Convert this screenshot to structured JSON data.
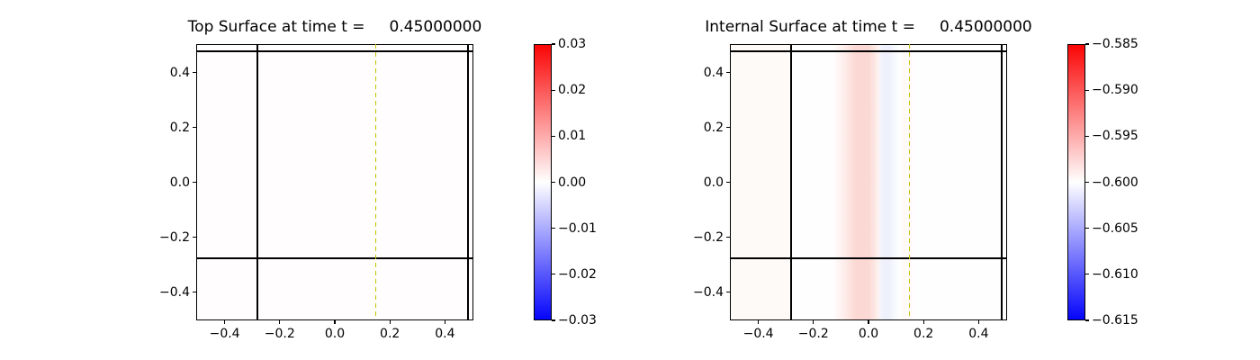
{
  "figure": {
    "background": "#ffffff",
    "text_color": "#000000"
  },
  "chart_data": [
    {
      "type": "heatmap",
      "title": "Top Surface at time t =     0.45000000",
      "xlim": [
        -0.5,
        0.5
      ],
      "ylim": [
        -0.5,
        0.5
      ],
      "grid": false,
      "xticks": [
        {
          "v": -0.4,
          "label": "−0.4"
        },
        {
          "v": -0.2,
          "label": "−0.2"
        },
        {
          "v": 0.0,
          "label": "0.0"
        },
        {
          "v": 0.2,
          "label": "0.2"
        },
        {
          "v": 0.4,
          "label": "0.4"
        }
      ],
      "yticks": [
        {
          "v": 0.4,
          "label": "0.4"
        },
        {
          "v": 0.2,
          "label": "0.2"
        },
        {
          "v": 0.0,
          "label": "0.0"
        },
        {
          "v": -0.2,
          "label": "−0.2"
        },
        {
          "v": -0.4,
          "label": "−0.4"
        }
      ],
      "field": {
        "color": "#fffdfd",
        "description": "near-uniform surface elevation ≈ 0.000 (white on blue-white-red colormap)"
      },
      "overlays": {
        "hlines": [
          0.478,
          -0.277
        ],
        "vlines": [
          -0.28,
          0.485
        ],
        "dashed_vline": {
          "x": 0.149,
          "color": "#c3c300"
        },
        "line_color": "#000000"
      },
      "colorbar": {
        "cmap": "bwr",
        "vmin": -0.03,
        "vmax": 0.03,
        "gradient": [
          {
            "color": "#fb0505",
            "pos": "0%"
          },
          {
            "color": "#ffffff",
            "pos": "50%"
          },
          {
            "color": "#0505fb",
            "pos": "100%"
          }
        ],
        "ticks": [
          "0.03",
          "0.02",
          "0.01",
          "0.00",
          "−0.01",
          "−0.02",
          "−0.03"
        ]
      }
    },
    {
      "type": "heatmap",
      "title": "Internal Surface at time t =     0.45000000",
      "xlim": [
        -0.5,
        0.5
      ],
      "ylim": [
        -0.5,
        0.5
      ],
      "grid": false,
      "xticks": [
        {
          "v": -0.4,
          "label": "−0.4"
        },
        {
          "v": -0.2,
          "label": "−0.2"
        },
        {
          "v": 0.0,
          "label": "0.0"
        },
        {
          "v": 0.2,
          "label": "0.2"
        },
        {
          "v": 0.4,
          "label": "0.4"
        }
      ],
      "yticks": [
        {
          "v": 0.4,
          "label": "0.4"
        },
        {
          "v": 0.2,
          "label": "0.2"
        },
        {
          "v": 0.0,
          "label": "0.0"
        },
        {
          "v": -0.2,
          "label": "−0.2"
        },
        {
          "v": -0.4,
          "label": "−0.4"
        }
      ],
      "field": {
        "description": "internal surface ≈ −0.600 with vertical wave stripes: red band (≈ −0.598) at x ∈ [−0.09, 0.03], faint blue band (≈ −0.601) at x ∈ [0.04, 0.09]",
        "stripes": [
          {
            "x": -0.5,
            "color": "#fefaf8"
          },
          {
            "x": -0.29,
            "color": "#fefaf8"
          },
          {
            "x": -0.27,
            "color": "#fffefe"
          },
          {
            "x": -0.13,
            "color": "#fffefe"
          },
          {
            "x": -0.09,
            "color": "#fdeeec"
          },
          {
            "x": -0.05,
            "color": "#fcdad5"
          },
          {
            "x": -0.04,
            "color": "#fbd8d3"
          },
          {
            "x": 0.0,
            "color": "#fbd8d3"
          },
          {
            "x": 0.02,
            "color": "#fce6e2"
          },
          {
            "x": 0.035,
            "color": "#fdf2f0"
          },
          {
            "x": 0.045,
            "color": "#f3f4fc"
          },
          {
            "x": 0.055,
            "color": "#eef0fb"
          },
          {
            "x": 0.075,
            "color": "#eef0fb"
          },
          {
            "x": 0.095,
            "color": "#f8f9fe"
          },
          {
            "x": 0.115,
            "color": "#fefefe"
          },
          {
            "x": 0.13,
            "color": "#fff9f7"
          },
          {
            "x": 0.15,
            "color": "#fff9f7"
          },
          {
            "x": 0.165,
            "color": "#fffefe"
          },
          {
            "x": 0.5,
            "color": "#fffefe"
          }
        ]
      },
      "overlays": {
        "hlines": [
          0.478,
          -0.277
        ],
        "vlines": [
          -0.28,
          0.485
        ],
        "dashed_vline": {
          "x": 0.149,
          "color": "#c3c300"
        },
        "line_color": "#000000"
      },
      "colorbar": {
        "cmap": "bwr",
        "vmin": -0.615,
        "vmax": -0.585,
        "gradient": [
          {
            "color": "#fb0505",
            "pos": "0%"
          },
          {
            "color": "#ffffff",
            "pos": "50%"
          },
          {
            "color": "#0505fb",
            "pos": "100%"
          }
        ],
        "ticks": [
          "−0.585",
          "−0.590",
          "−0.595",
          "−0.600",
          "−0.605",
          "−0.610",
          "−0.615"
        ]
      }
    }
  ]
}
